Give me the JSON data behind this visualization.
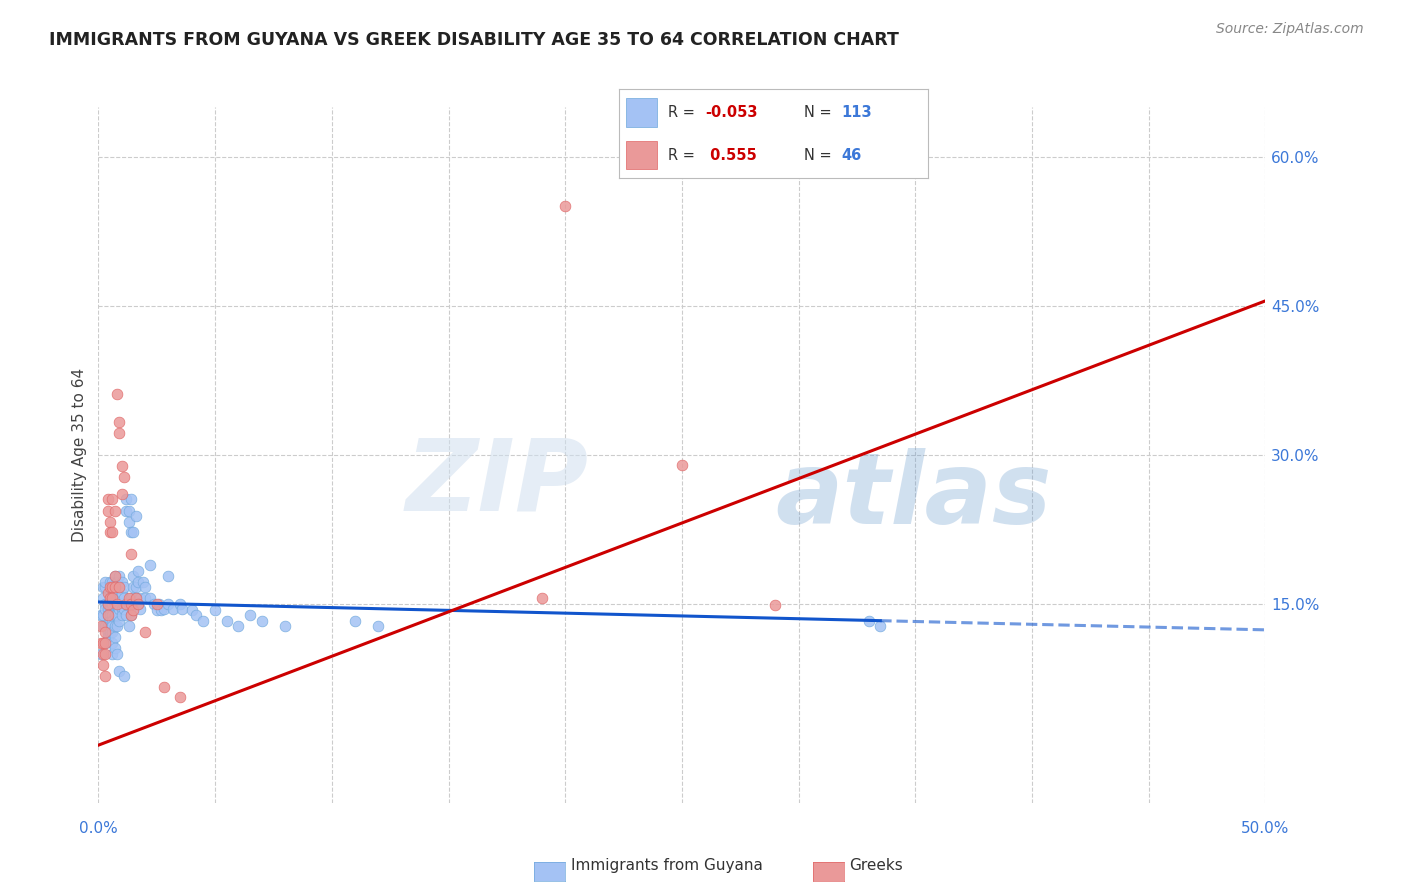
{
  "title": "IMMIGRANTS FROM GUYANA VS GREEK DISABILITY AGE 35 TO 64 CORRELATION CHART",
  "source": "Source: ZipAtlas.com",
  "ylabel": "Disability Age 35 to 64",
  "xlim": [
    0.0,
    0.5
  ],
  "ylim": [
    -0.05,
    0.65
  ],
  "yticks_right": [
    0.15,
    0.3,
    0.45,
    0.6
  ],
  "ytick_labels_right": [
    "15.0%",
    "30.0%",
    "45.0%",
    "60.0%"
  ],
  "blue_color": "#a4c2f4",
  "pink_color": "#ea9999",
  "blue_dot_edge": "#6fa8dc",
  "pink_dot_edge": "#e06666",
  "blue_line_color": "#1155cc",
  "pink_line_color": "#cc0000",
  "grid_color": "#cccccc",
  "watermark_zip": "ZIP",
  "watermark_atlas": "atlas",
  "background_color": "#ffffff",
  "blue_dots": [
    [
      0.001,
      0.139
    ],
    [
      0.001,
      0.1
    ],
    [
      0.002,
      0.156
    ],
    [
      0.002,
      0.167
    ],
    [
      0.002,
      0.139
    ],
    [
      0.002,
      0.128
    ],
    [
      0.003,
      0.15
    ],
    [
      0.003,
      0.145
    ],
    [
      0.003,
      0.128
    ],
    [
      0.003,
      0.167
    ],
    [
      0.003,
      0.172
    ],
    [
      0.003,
      0.111
    ],
    [
      0.004,
      0.15
    ],
    [
      0.004,
      0.145
    ],
    [
      0.004,
      0.139
    ],
    [
      0.004,
      0.128
    ],
    [
      0.004,
      0.122
    ],
    [
      0.004,
      0.117
    ],
    [
      0.005,
      0.172
    ],
    [
      0.005,
      0.161
    ],
    [
      0.005,
      0.15
    ],
    [
      0.005,
      0.145
    ],
    [
      0.005,
      0.139
    ],
    [
      0.005,
      0.133
    ],
    [
      0.005,
      0.128
    ],
    [
      0.005,
      0.122
    ],
    [
      0.006,
      0.172
    ],
    [
      0.006,
      0.161
    ],
    [
      0.006,
      0.15
    ],
    [
      0.006,
      0.139
    ],
    [
      0.006,
      0.133
    ],
    [
      0.006,
      0.128
    ],
    [
      0.006,
      0.122
    ],
    [
      0.006,
      0.111
    ],
    [
      0.006,
      0.1
    ],
    [
      0.007,
      0.178
    ],
    [
      0.007,
      0.161
    ],
    [
      0.007,
      0.15
    ],
    [
      0.007,
      0.139
    ],
    [
      0.007,
      0.128
    ],
    [
      0.007,
      0.117
    ],
    [
      0.007,
      0.106
    ],
    [
      0.008,
      0.172
    ],
    [
      0.008,
      0.161
    ],
    [
      0.008,
      0.15
    ],
    [
      0.008,
      0.139
    ],
    [
      0.008,
      0.128
    ],
    [
      0.008,
      0.1
    ],
    [
      0.009,
      0.178
    ],
    [
      0.009,
      0.167
    ],
    [
      0.009,
      0.156
    ],
    [
      0.009,
      0.145
    ],
    [
      0.009,
      0.133
    ],
    [
      0.009,
      0.083
    ],
    [
      0.01,
      0.172
    ],
    [
      0.01,
      0.161
    ],
    [
      0.01,
      0.145
    ],
    [
      0.01,
      0.139
    ],
    [
      0.011,
      0.167
    ],
    [
      0.011,
      0.156
    ],
    [
      0.011,
      0.145
    ],
    [
      0.011,
      0.078
    ],
    [
      0.012,
      0.256
    ],
    [
      0.012,
      0.244
    ],
    [
      0.012,
      0.15
    ],
    [
      0.012,
      0.139
    ],
    [
      0.013,
      0.244
    ],
    [
      0.013,
      0.233
    ],
    [
      0.013,
      0.15
    ],
    [
      0.013,
      0.128
    ],
    [
      0.014,
      0.256
    ],
    [
      0.014,
      0.222
    ],
    [
      0.014,
      0.156
    ],
    [
      0.014,
      0.139
    ],
    [
      0.015,
      0.222
    ],
    [
      0.015,
      0.178
    ],
    [
      0.015,
      0.167
    ],
    [
      0.015,
      0.15
    ],
    [
      0.016,
      0.239
    ],
    [
      0.016,
      0.167
    ],
    [
      0.016,
      0.156
    ],
    [
      0.017,
      0.183
    ],
    [
      0.017,
      0.172
    ],
    [
      0.017,
      0.15
    ],
    [
      0.018,
      0.156
    ],
    [
      0.018,
      0.145
    ],
    [
      0.019,
      0.172
    ],
    [
      0.02,
      0.167
    ],
    [
      0.02,
      0.156
    ],
    [
      0.022,
      0.189
    ],
    [
      0.022,
      0.156
    ],
    [
      0.024,
      0.15
    ],
    [
      0.025,
      0.144
    ],
    [
      0.026,
      0.15
    ],
    [
      0.027,
      0.144
    ],
    [
      0.028,
      0.145
    ],
    [
      0.03,
      0.178
    ],
    [
      0.03,
      0.15
    ],
    [
      0.032,
      0.145
    ],
    [
      0.035,
      0.15
    ],
    [
      0.036,
      0.145
    ],
    [
      0.04,
      0.144
    ],
    [
      0.042,
      0.139
    ],
    [
      0.045,
      0.133
    ],
    [
      0.05,
      0.144
    ],
    [
      0.055,
      0.133
    ],
    [
      0.06,
      0.128
    ],
    [
      0.065,
      0.139
    ],
    [
      0.07,
      0.133
    ],
    [
      0.08,
      0.128
    ],
    [
      0.11,
      0.133
    ],
    [
      0.12,
      0.128
    ],
    [
      0.33,
      0.133
    ],
    [
      0.335,
      0.128
    ]
  ],
  "pink_dots": [
    [
      0.001,
      0.128
    ],
    [
      0.001,
      0.111
    ],
    [
      0.002,
      0.111
    ],
    [
      0.002,
      0.1
    ],
    [
      0.002,
      0.089
    ],
    [
      0.003,
      0.122
    ],
    [
      0.003,
      0.111
    ],
    [
      0.003,
      0.1
    ],
    [
      0.003,
      0.078
    ],
    [
      0.004,
      0.256
    ],
    [
      0.004,
      0.244
    ],
    [
      0.004,
      0.161
    ],
    [
      0.004,
      0.15
    ],
    [
      0.004,
      0.139
    ],
    [
      0.005,
      0.233
    ],
    [
      0.005,
      0.222
    ],
    [
      0.005,
      0.167
    ],
    [
      0.005,
      0.156
    ],
    [
      0.006,
      0.256
    ],
    [
      0.006,
      0.222
    ],
    [
      0.006,
      0.167
    ],
    [
      0.006,
      0.156
    ],
    [
      0.007,
      0.244
    ],
    [
      0.007,
      0.178
    ],
    [
      0.007,
      0.167
    ],
    [
      0.008,
      0.361
    ],
    [
      0.008,
      0.15
    ],
    [
      0.009,
      0.333
    ],
    [
      0.009,
      0.322
    ],
    [
      0.009,
      0.167
    ],
    [
      0.01,
      0.289
    ],
    [
      0.01,
      0.261
    ],
    [
      0.011,
      0.278
    ],
    [
      0.012,
      0.15
    ],
    [
      0.013,
      0.156
    ],
    [
      0.014,
      0.2
    ],
    [
      0.014,
      0.15
    ],
    [
      0.014,
      0.139
    ],
    [
      0.015,
      0.144
    ],
    [
      0.016,
      0.156
    ],
    [
      0.017,
      0.15
    ],
    [
      0.02,
      0.122
    ],
    [
      0.025,
      0.15
    ],
    [
      0.028,
      0.067
    ],
    [
      0.035,
      0.056
    ],
    [
      0.2,
      0.55
    ],
    [
      0.19,
      0.156
    ],
    [
      0.25,
      0.29
    ],
    [
      0.29,
      0.149
    ]
  ],
  "blue_trend_x0": 0.0,
  "blue_trend_x1": 0.5,
  "blue_trend_y0": 0.152,
  "blue_trend_y1": 0.124,
  "blue_trend_solid_end": 0.335,
  "pink_trend_x0": 0.0,
  "pink_trend_x1": 0.5,
  "pink_trend_y0": 0.008,
  "pink_trend_y1": 0.455
}
